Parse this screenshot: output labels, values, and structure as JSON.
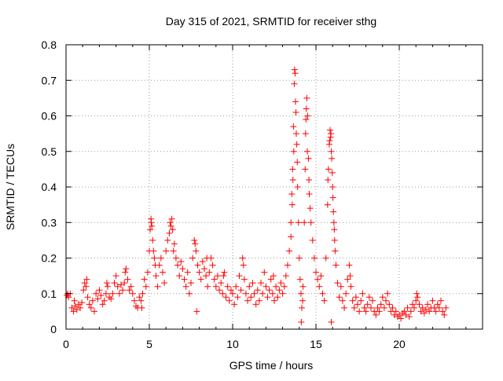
{
  "chart_data": {
    "type": "scatter",
    "title": "Day 315 of 2021, SRMTID for receiver sthg",
    "xlabel": "GPS time / hours",
    "ylabel": "SRMTID / TECUs",
    "xlim": [
      0,
      25
    ],
    "ylim": [
      0,
      0.8
    ],
    "x_ticks": [
      0,
      5,
      10,
      15,
      20
    ],
    "y_ticks": [
      0,
      0.1,
      0.2,
      0.3,
      0.4,
      0.5,
      0.6,
      0.7,
      0.8
    ],
    "x_tick_labels": [
      "0",
      "5",
      "10",
      "15",
      "20"
    ],
    "y_tick_labels": [
      "0",
      "0.1",
      "0.2",
      "0.3",
      "0.4",
      "0.5",
      "0.6",
      "0.7",
      "0.8"
    ],
    "grid": true,
    "marker": "+",
    "color": "#ff0000",
    "series": [
      {
        "name": "SRMTID",
        "points": [
          [
            0.05,
            0.095
          ],
          [
            0.15,
            0.09
          ],
          [
            0.25,
            0.1
          ],
          [
            0.35,
            0.06
          ],
          [
            0.45,
            0.05
          ],
          [
            0.55,
            0.065
          ],
          [
            0.65,
            0.055
          ],
          [
            0.75,
            0.07
          ],
          [
            0.85,
            0.06
          ],
          [
            0.95,
            0.075
          ],
          [
            1.05,
            0.11
          ],
          [
            1.12,
            0.13
          ],
          [
            1.2,
            0.12
          ],
          [
            1.3,
            0.09
          ],
          [
            1.4,
            0.07
          ],
          [
            1.5,
            0.06
          ],
          [
            1.6,
            0.08
          ],
          [
            1.7,
            0.05
          ],
          [
            1.8,
            0.1
          ],
          [
            1.9,
            0.085
          ],
          [
            2.0,
            0.11
          ],
          [
            2.1,
            0.095
          ],
          [
            2.2,
            0.07
          ],
          [
            2.3,
            0.08
          ],
          [
            2.4,
            0.1
          ],
          [
            2.5,
            0.12
          ],
          [
            2.6,
            0.09
          ],
          [
            2.7,
            0.085
          ],
          [
            2.8,
            0.1
          ],
          [
            2.9,
            0.13
          ],
          [
            3.0,
            0.15
          ],
          [
            3.1,
            0.12
          ],
          [
            3.2,
            0.1
          ],
          [
            3.3,
            0.125
          ],
          [
            3.4,
            0.11
          ],
          [
            3.5,
            0.13
          ],
          [
            3.6,
            0.17
          ],
          [
            3.7,
            0.14
          ],
          [
            3.8,
            0.11
          ],
          [
            3.9,
            0.12
          ],
          [
            4.0,
            0.1
          ],
          [
            4.1,
            0.08
          ],
          [
            4.2,
            0.065
          ],
          [
            4.3,
            0.06
          ],
          [
            4.4,
            0.09
          ],
          [
            4.5,
            0.08
          ],
          [
            4.6,
            0.1
          ],
          [
            4.7,
            0.14
          ],
          [
            4.8,
            0.12
          ],
          [
            4.9,
            0.16
          ],
          [
            5.0,
            0.22
          ],
          [
            5.05,
            0.28
          ],
          [
            5.1,
            0.31
          ],
          [
            5.15,
            0.29
          ],
          [
            5.2,
            0.25
          ],
          [
            5.3,
            0.2
          ],
          [
            5.4,
            0.15
          ],
          [
            5.5,
            0.12
          ],
          [
            5.6,
            0.18
          ],
          [
            5.7,
            0.2
          ],
          [
            5.8,
            0.16
          ],
          [
            5.9,
            0.13
          ],
          [
            6.0,
            0.22
          ],
          [
            6.1,
            0.25
          ],
          [
            6.2,
            0.27
          ],
          [
            6.3,
            0.29
          ],
          [
            6.35,
            0.31
          ],
          [
            6.4,
            0.28
          ],
          [
            6.5,
            0.24
          ],
          [
            6.6,
            0.2
          ],
          [
            6.7,
            0.18
          ],
          [
            6.8,
            0.15
          ],
          [
            6.9,
            0.19
          ],
          [
            7.0,
            0.17
          ],
          [
            7.1,
            0.14
          ],
          [
            7.2,
            0.12
          ],
          [
            7.3,
            0.16
          ],
          [
            7.4,
            0.1
          ],
          [
            7.5,
            0.13
          ],
          [
            7.6,
            0.2
          ],
          [
            7.7,
            0.25
          ],
          [
            7.8,
            0.22
          ],
          [
            7.9,
            0.18
          ],
          [
            8.0,
            0.16
          ],
          [
            8.1,
            0.14
          ],
          [
            8.2,
            0.19
          ],
          [
            8.3,
            0.17
          ],
          [
            8.4,
            0.15
          ],
          [
            8.5,
            0.12
          ],
          [
            8.6,
            0.16
          ],
          [
            8.7,
            0.2
          ],
          [
            8.8,
            0.18
          ],
          [
            8.9,
            0.14
          ],
          [
            9.0,
            0.12
          ],
          [
            9.1,
            0.15
          ],
          [
            9.2,
            0.11
          ],
          [
            9.3,
            0.13
          ],
          [
            9.4,
            0.1
          ],
          [
            9.5,
            0.16
          ],
          [
            9.6,
            0.09
          ],
          [
            9.7,
            0.12
          ],
          [
            9.8,
            0.08
          ],
          [
            9.9,
            0.11
          ],
          [
            10.0,
            0.1
          ],
          [
            10.1,
            0.07
          ],
          [
            10.2,
            0.12
          ],
          [
            10.3,
            0.09
          ],
          [
            10.4,
            0.15
          ],
          [
            10.5,
            0.11
          ],
          [
            10.6,
            0.2
          ],
          [
            10.7,
            0.14
          ],
          [
            10.8,
            0.1
          ],
          [
            10.9,
            0.08
          ],
          [
            11.0,
            0.12
          ],
          [
            11.1,
            0.09
          ],
          [
            11.2,
            0.13
          ],
          [
            11.3,
            0.1
          ],
          [
            11.4,
            0.07
          ],
          [
            11.5,
            0.11
          ],
          [
            11.6,
            0.08
          ],
          [
            11.7,
            0.13
          ],
          [
            11.8,
            0.1
          ],
          [
            11.9,
            0.16
          ],
          [
            12.0,
            0.12
          ],
          [
            12.1,
            0.09
          ],
          [
            12.2,
            0.11
          ],
          [
            12.3,
            0.14
          ],
          [
            12.4,
            0.1
          ],
          [
            12.5,
            0.08
          ],
          [
            12.6,
            0.12
          ],
          [
            12.7,
            0.09
          ],
          [
            12.8,
            0.11
          ],
          [
            12.9,
            0.13
          ],
          [
            13.0,
            0.1
          ],
          [
            13.1,
            0.12
          ],
          [
            13.2,
            0.15
          ],
          [
            13.3,
            0.18
          ],
          [
            13.4,
            0.22
          ],
          [
            13.5,
            0.3
          ],
          [
            13.55,
            0.38
          ],
          [
            13.6,
            0.45
          ],
          [
            13.65,
            0.57
          ],
          [
            13.7,
            0.69
          ],
          [
            13.72,
            0.73
          ],
          [
            13.75,
            0.72
          ],
          [
            13.8,
            0.61
          ],
          [
            13.85,
            0.52
          ],
          [
            13.9,
            0.4
          ],
          [
            13.95,
            0.3
          ],
          [
            14.0,
            0.2
          ],
          [
            14.05,
            0.14
          ],
          [
            14.1,
            0.1
          ],
          [
            14.15,
            0.06
          ],
          [
            14.2,
            0.08
          ],
          [
            14.3,
            0.3
          ],
          [
            14.35,
            0.45
          ],
          [
            14.4,
            0.59
          ],
          [
            14.45,
            0.65
          ],
          [
            14.5,
            0.6
          ],
          [
            14.55,
            0.48
          ],
          [
            14.6,
            0.38
          ],
          [
            14.7,
            0.3
          ],
          [
            14.8,
            0.25
          ],
          [
            14.9,
            0.2
          ],
          [
            15.0,
            0.16
          ],
          [
            15.1,
            0.14
          ],
          [
            15.2,
            0.12
          ],
          [
            15.3,
            0.15
          ],
          [
            15.4,
            0.1
          ],
          [
            15.5,
            0.08
          ],
          [
            15.6,
            0.2
          ],
          [
            15.7,
            0.35
          ],
          [
            15.75,
            0.45
          ],
          [
            15.8,
            0.52
          ],
          [
            15.85,
            0.56
          ],
          [
            15.9,
            0.55
          ],
          [
            15.95,
            0.48
          ],
          [
            16.0,
            0.4
          ],
          [
            16.05,
            0.33
          ],
          [
            16.1,
            0.28
          ],
          [
            16.15,
            0.22
          ],
          [
            16.2,
            0.18
          ],
          [
            16.3,
            0.13
          ],
          [
            16.4,
            0.09
          ],
          [
            16.5,
            0.12
          ],
          [
            16.6,
            0.08
          ],
          [
            16.7,
            0.06
          ],
          [
            16.8,
            0.1
          ],
          [
            16.9,
            0.14
          ],
          [
            17.0,
            0.18
          ],
          [
            17.1,
            0.12
          ],
          [
            17.2,
            0.08
          ],
          [
            17.3,
            0.06
          ],
          [
            17.4,
            0.09
          ],
          [
            17.5,
            0.07
          ],
          [
            17.6,
            0.05
          ],
          [
            17.7,
            0.08
          ],
          [
            17.8,
            0.1
          ],
          [
            17.9,
            0.06
          ],
          [
            18.0,
            0.05
          ],
          [
            18.1,
            0.07
          ],
          [
            18.2,
            0.09
          ],
          [
            18.3,
            0.06
          ],
          [
            18.4,
            0.08
          ],
          [
            18.5,
            0.05
          ],
          [
            18.6,
            0.04
          ],
          [
            18.7,
            0.06
          ],
          [
            18.8,
            0.05
          ],
          [
            18.9,
            0.07
          ],
          [
            19.0,
            0.09
          ],
          [
            19.1,
            0.06
          ],
          [
            19.2,
            0.08
          ],
          [
            19.3,
            0.1
          ],
          [
            19.4,
            0.07
          ],
          [
            19.5,
            0.05
          ],
          [
            19.6,
            0.06
          ],
          [
            19.7,
            0.04
          ],
          [
            19.8,
            0.05
          ],
          [
            19.9,
            0.035
          ],
          [
            20.0,
            0.04
          ],
          [
            20.1,
            0.03
          ],
          [
            20.2,
            0.045
          ],
          [
            20.3,
            0.05
          ],
          [
            20.4,
            0.04
          ],
          [
            20.5,
            0.06
          ],
          [
            20.6,
            0.035
          ],
          [
            20.7,
            0.05
          ],
          [
            20.8,
            0.07
          ],
          [
            20.9,
            0.06
          ],
          [
            21.0,
            0.08
          ],
          [
            21.1,
            0.09
          ],
          [
            21.2,
            0.07
          ],
          [
            21.3,
            0.05
          ],
          [
            21.4,
            0.06
          ],
          [
            21.5,
            0.045
          ],
          [
            21.6,
            0.055
          ],
          [
            21.7,
            0.07
          ],
          [
            21.8,
            0.05
          ],
          [
            21.9,
            0.06
          ],
          [
            22.0,
            0.08
          ],
          [
            22.1,
            0.06
          ],
          [
            22.2,
            0.05
          ],
          [
            22.3,
            0.07
          ],
          [
            22.4,
            0.06
          ],
          [
            22.5,
            0.08
          ],
          [
            22.6,
            0.05
          ],
          [
            22.7,
            0.04
          ],
          [
            22.8,
            0.06
          ],
          [
            0.5,
            0.08
          ],
          [
            1.25,
            0.14
          ],
          [
            2.45,
            0.13
          ],
          [
            3.55,
            0.16
          ],
          [
            4.55,
            0.06
          ],
          [
            5.12,
            0.3
          ],
          [
            5.25,
            0.22
          ],
          [
            6.25,
            0.3
          ],
          [
            6.45,
            0.22
          ],
          [
            7.75,
            0.24
          ],
          [
            8.45,
            0.2
          ],
          [
            9.45,
            0.15
          ],
          [
            10.65,
            0.18
          ],
          [
            12.45,
            0.15
          ],
          [
            13.5,
            0.26
          ],
          [
            13.58,
            0.35
          ],
          [
            13.62,
            0.42
          ],
          [
            13.67,
            0.5
          ],
          [
            13.77,
            0.64
          ],
          [
            13.82,
            0.55
          ],
          [
            13.88,
            0.47
          ],
          [
            14.38,
            0.55
          ],
          [
            14.42,
            0.62
          ],
          [
            14.48,
            0.5
          ],
          [
            14.58,
            0.42
          ],
          [
            14.65,
            0.34
          ],
          [
            15.72,
            0.42
          ],
          [
            15.82,
            0.53
          ],
          [
            15.88,
            0.54
          ],
          [
            15.92,
            0.5
          ],
          [
            15.98,
            0.44
          ],
          [
            16.02,
            0.37
          ],
          [
            16.08,
            0.3
          ],
          [
            14.12,
            0.02
          ],
          [
            14.22,
            0.12
          ],
          [
            15.92,
            0.02
          ],
          [
            16.12,
            0.25
          ],
          [
            17.05,
            0.15
          ],
          [
            21.05,
            0.1
          ],
          [
            0.1,
            0.1
          ],
          [
            5.35,
            0.18
          ],
          [
            7.85,
            0.05
          ]
        ]
      }
    ]
  }
}
